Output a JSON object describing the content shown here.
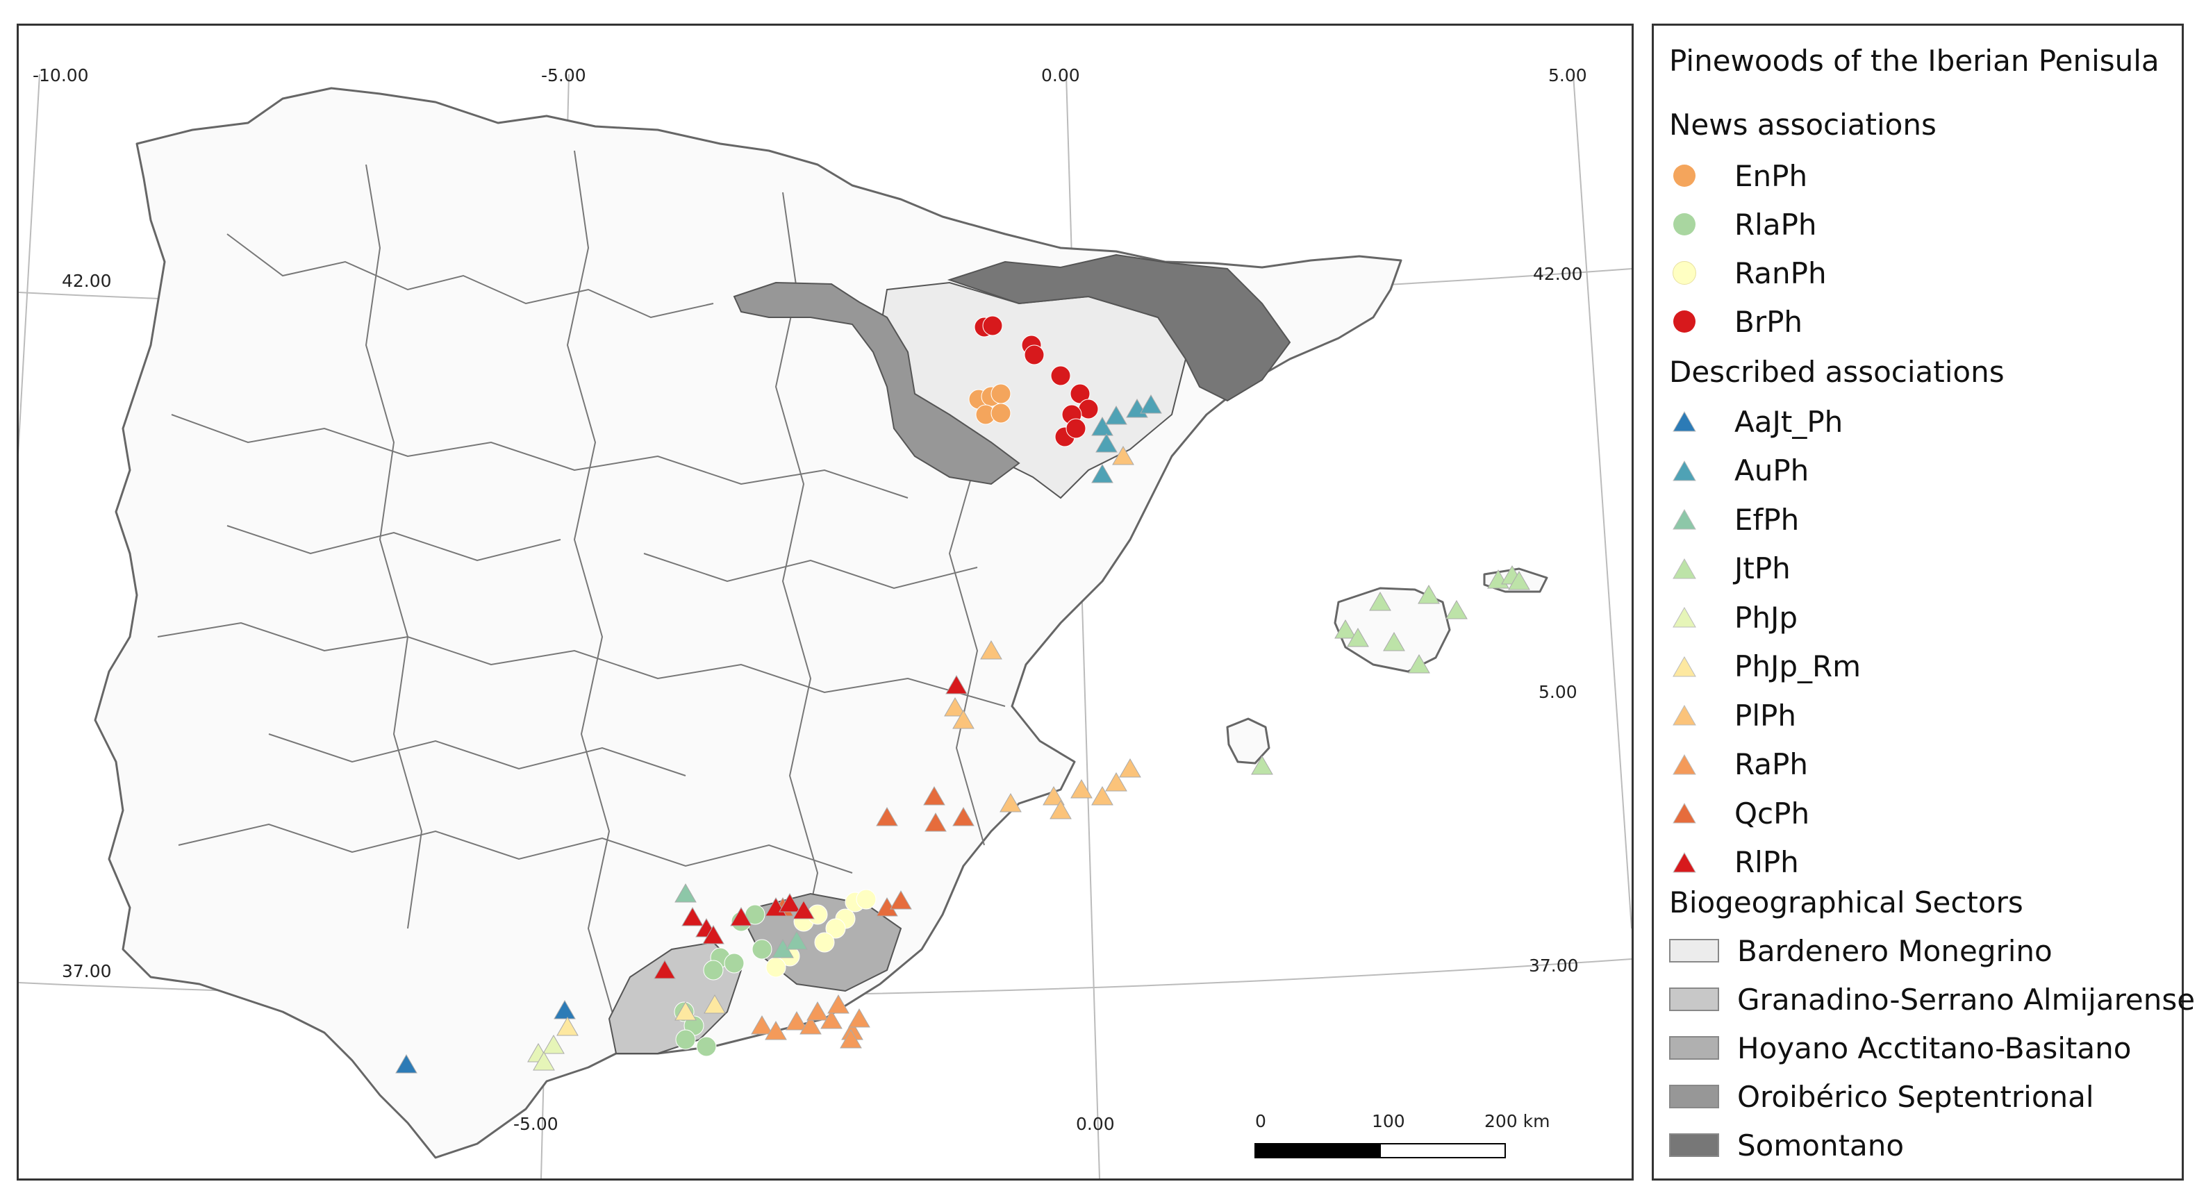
{
  "map": {
    "graticule_labels": {
      "lon_top": [
        "-10.00",
        "-5.00",
        "0.00",
        "5.00"
      ],
      "lon_bottom": [
        "-5.00",
        "0.00"
      ],
      "lat_left": [
        "42.00",
        "37.00"
      ],
      "lat_right": [
        "42.00",
        "5.00",
        "37.00"
      ]
    },
    "scale_bar": {
      "labels": [
        "0",
        "100",
        "200 km"
      ]
    },
    "colors": {
      "land": "#fafafa",
      "coast": "#666666",
      "graticule": "#bbbbbb",
      "bardenero": "#ececec",
      "granadino": "#c8c8c8",
      "hoyano": "#b0b0b0",
      "oroiberico": "#979797",
      "somontano": "#777777"
    }
  },
  "legend": {
    "title": "Pinewoods of the Iberian Penisula",
    "new_heading": "News associations",
    "new_items": [
      {
        "label": "EnPh",
        "color": "#f4a55c"
      },
      {
        "label": "RlaPh",
        "color": "#a9d6a0"
      },
      {
        "label": "RanPh",
        "color": "#ffffc2"
      },
      {
        "label": "BrPh",
        "color": "#d7191c"
      }
    ],
    "described_heading": "Described associations",
    "described_items": [
      {
        "label": "AaJt_Ph",
        "color": "#2c7bb6"
      },
      {
        "label": "AuPh",
        "color": "#4fa2b5"
      },
      {
        "label": "EfPh",
        "color": "#8dc7a8"
      },
      {
        "label": "JtPh",
        "color": "#bde3a8"
      },
      {
        "label": "PhJp",
        "color": "#e6f5b8"
      },
      {
        "label": "PhJp_Rm",
        "color": "#fde8a0"
      },
      {
        "label": "PlPh",
        "color": "#fbc37a"
      },
      {
        "label": "RaPh",
        "color": "#f49a5a"
      },
      {
        "label": "QcPh",
        "color": "#e66c3c"
      },
      {
        "label": "RlPh",
        "color": "#d7191c"
      }
    ],
    "sectors_heading": "Biogeographical Sectors",
    "sector_items": [
      {
        "label": "Bardenero Monegrino",
        "color": "#ececec"
      },
      {
        "label": "Granadino-Serrano Almijarense",
        "color": "#c8c8c8"
      },
      {
        "label": "Hoyano Acctitano-Basitano",
        "color": "#b0b0b0"
      },
      {
        "label": "Oroibérico Septentrional",
        "color": "#979797"
      },
      {
        "label": "Somontano",
        "color": "#777777"
      }
    ]
  }
}
